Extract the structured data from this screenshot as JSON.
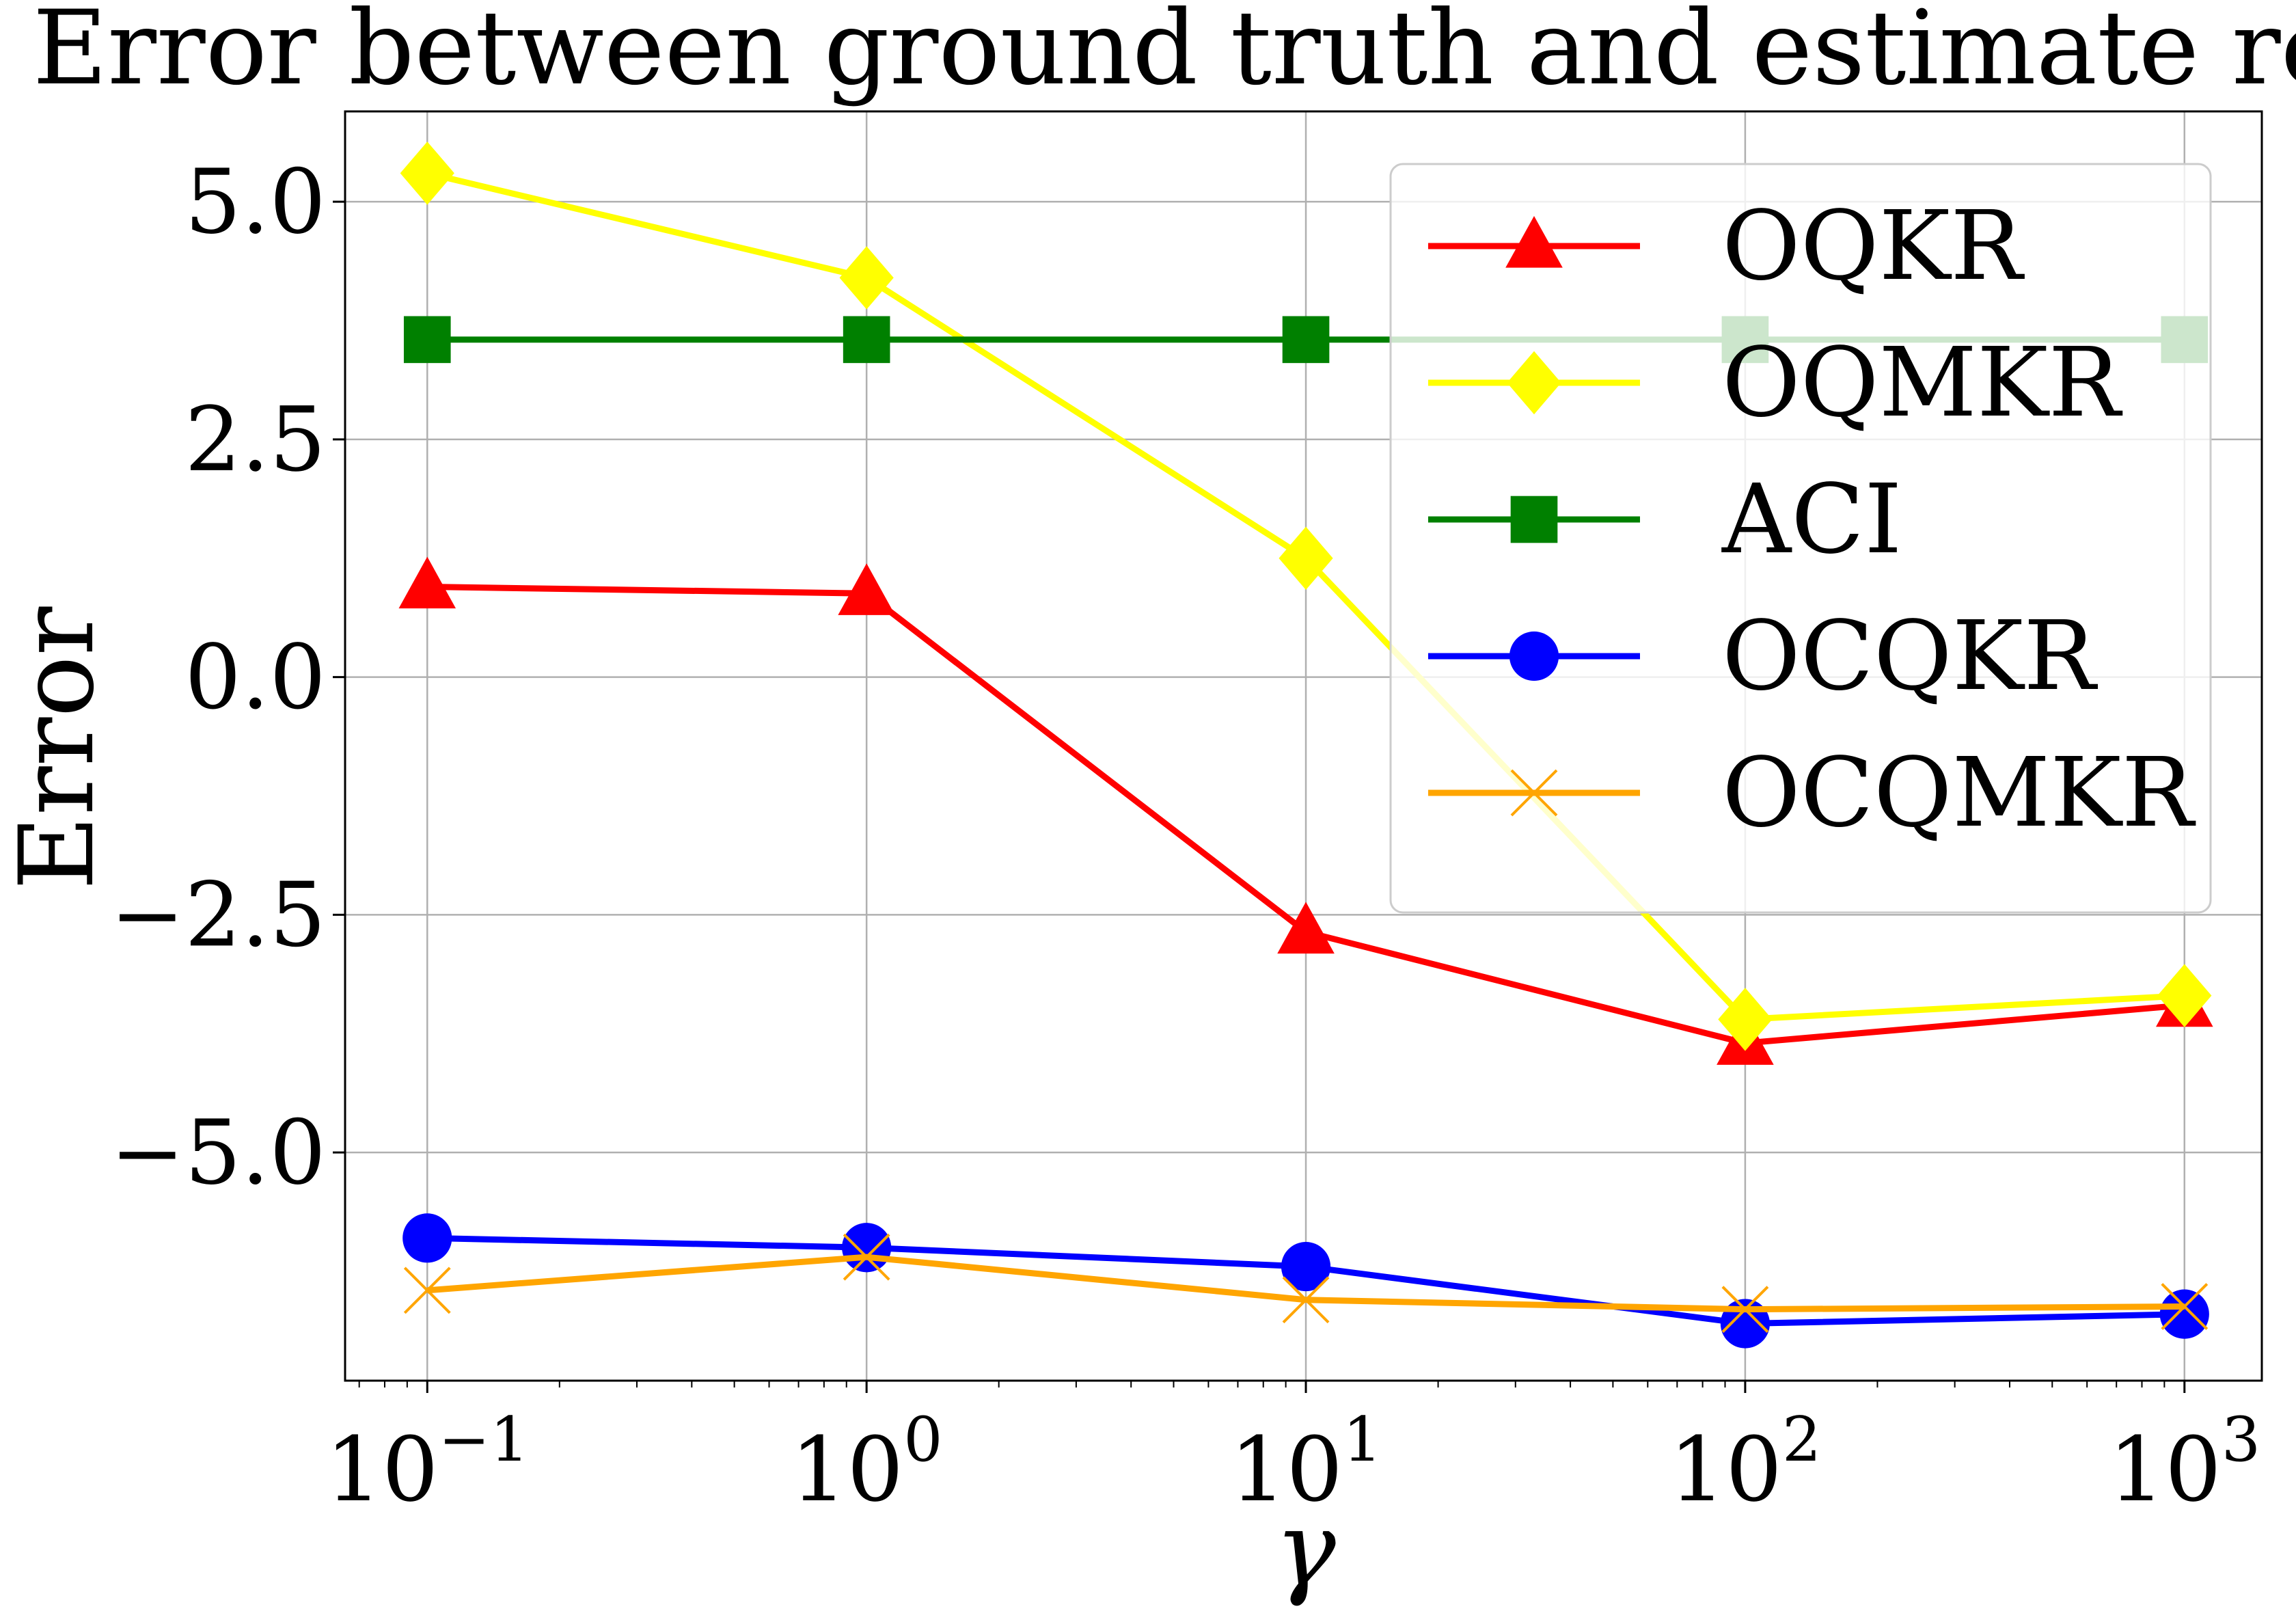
{
  "chart_data": {
    "type": "line",
    "title": "Error between ground truth and estimate result",
    "xlabel": "γ",
    "ylabel": "Error",
    "xscale": "log",
    "x": [
      0.1,
      1,
      10,
      100,
      1000
    ],
    "xticks": [
      {
        "base": "10",
        "exp": "−1"
      },
      {
        "base": "10",
        "exp": "0"
      },
      {
        "base": "10",
        "exp": "1"
      },
      {
        "base": "10",
        "exp": "2"
      },
      {
        "base": "10",
        "exp": "3"
      }
    ],
    "xlim": [
      0.065,
      1500
    ],
    "ylim": [
      -7.4,
      5.95
    ],
    "yticks": [
      5.0,
      2.5,
      0.0,
      -2.5,
      -5.0
    ],
    "ytick_labels": [
      "5.0",
      "2.5",
      "0.0",
      "−2.5",
      "−5.0"
    ],
    "grid": true,
    "legend_position": "upper-right",
    "series": [
      {
        "name": "OQKR",
        "color": "#ff0000",
        "marker": "triangle",
        "values": [
          0.95,
          0.88,
          -2.68,
          -3.85,
          -3.45
        ]
      },
      {
        "name": "OQMKR",
        "color": "#ffff00",
        "marker": "diamond",
        "values": [
          5.3,
          4.2,
          1.25,
          -3.6,
          -3.35
        ]
      },
      {
        "name": "ACI",
        "color": "#008000",
        "marker": "square",
        "values": [
          3.55,
          3.55,
          3.55,
          3.55,
          3.55
        ]
      },
      {
        "name": "OCQKR",
        "color": "#0000ff",
        "marker": "circle",
        "values": [
          -5.9,
          -6.0,
          -6.2,
          -6.8,
          -6.7
        ]
      },
      {
        "name": "OCQMKR",
        "color": "#ffa500",
        "marker": "x",
        "values": [
          -6.45,
          -6.1,
          -6.55,
          -6.65,
          -6.62
        ]
      }
    ]
  }
}
